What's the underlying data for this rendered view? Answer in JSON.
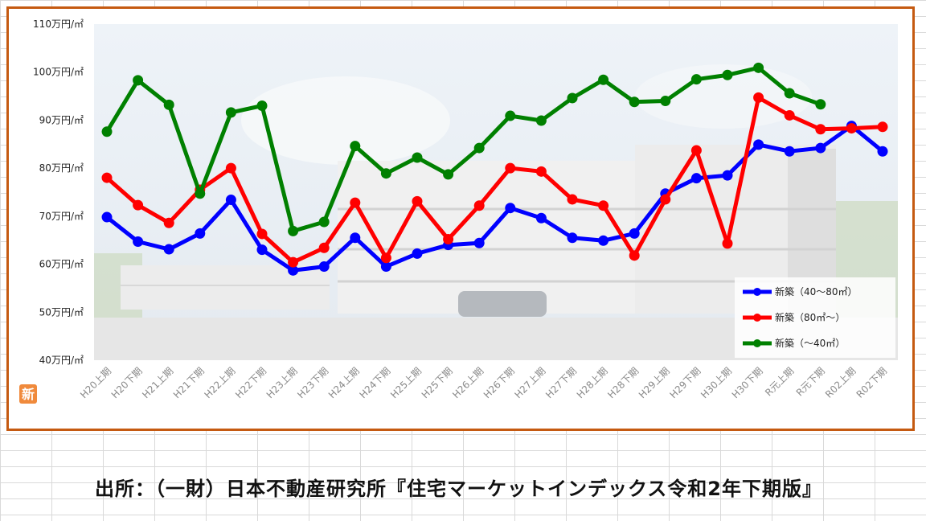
{
  "colors": {
    "frame": "#c55a11",
    "series_40_80": "#0000ff",
    "series_80_up": "#ff0000",
    "series_under_40": "#008000"
  },
  "badge_text": "新",
  "footnote": "出所：（一財）日本不動産研究所『住宅マーケットインデックス令和2年下期版』",
  "chart_data": {
    "type": "line",
    "title": "",
    "xlabel": "",
    "ylabel": "",
    "ylim": [
      40,
      110
    ],
    "y_ticks": [
      {
        "value": 40,
        "label": "40万円/㎡"
      },
      {
        "value": 50,
        "label": "50万円/㎡"
      },
      {
        "value": 60,
        "label": "60万円/㎡"
      },
      {
        "value": 70,
        "label": "70万円/㎡"
      },
      {
        "value": 80,
        "label": "80万円/㎡"
      },
      {
        "value": 90,
        "label": "90万円/㎡"
      },
      {
        "value": 100,
        "label": "100万円/㎡"
      },
      {
        "value": 110,
        "label": "110万円/㎡"
      }
    ],
    "grid": false,
    "legend_position": "bottom-right",
    "categories": [
      "H20上期",
      "H20下期",
      "H21上期",
      "H21下期",
      "H22上期",
      "H22下期",
      "H23上期",
      "H23下期",
      "H24上期",
      "H24下期",
      "H25上期",
      "H25下期",
      "H26上期",
      "H26下期",
      "H27上期",
      "H27下期",
      "H28上期",
      "H28下期",
      "H29上期",
      "H29下期",
      "H30上期",
      "H30下期",
      "R元上期",
      "R元下期",
      "R02上期",
      "R02下期"
    ],
    "series": [
      {
        "name": "新築（40～80㎡）",
        "color": "#0000ff",
        "values": [
          69.8,
          64.7,
          63.1,
          66.4,
          73.4,
          63.0,
          58.7,
          59.5,
          65.5,
          59.5,
          62.2,
          64.0,
          64.4,
          71.7,
          69.6,
          65.5,
          64.9,
          66.4,
          74.7,
          77.9,
          78.5,
          84.9,
          83.5,
          84.2,
          88.8,
          83.5
        ]
      },
      {
        "name": "新築（80㎡～）",
        "color": "#ff0000",
        "values": [
          78.0,
          72.3,
          68.6,
          75.5,
          80.0,
          66.3,
          60.4,
          63.4,
          72.8,
          61.3,
          73.1,
          65.2,
          72.2,
          80.0,
          79.3,
          73.5,
          72.2,
          61.8,
          73.5,
          83.7,
          64.3,
          94.7,
          91.0,
          88.1,
          88.3,
          88.6
        ]
      },
      {
        "name": "新築（～40㎡）",
        "color": "#008000",
        "values": [
          87.6,
          98.3,
          93.2,
          74.7,
          91.6,
          93.0,
          66.9,
          68.8,
          84.6,
          78.9,
          82.2,
          78.7,
          84.2,
          90.9,
          89.9,
          94.6,
          98.4,
          93.8,
          94.0,
          98.5,
          99.4,
          100.9,
          95.6,
          93.3,
          null,
          null
        ]
      }
    ]
  }
}
